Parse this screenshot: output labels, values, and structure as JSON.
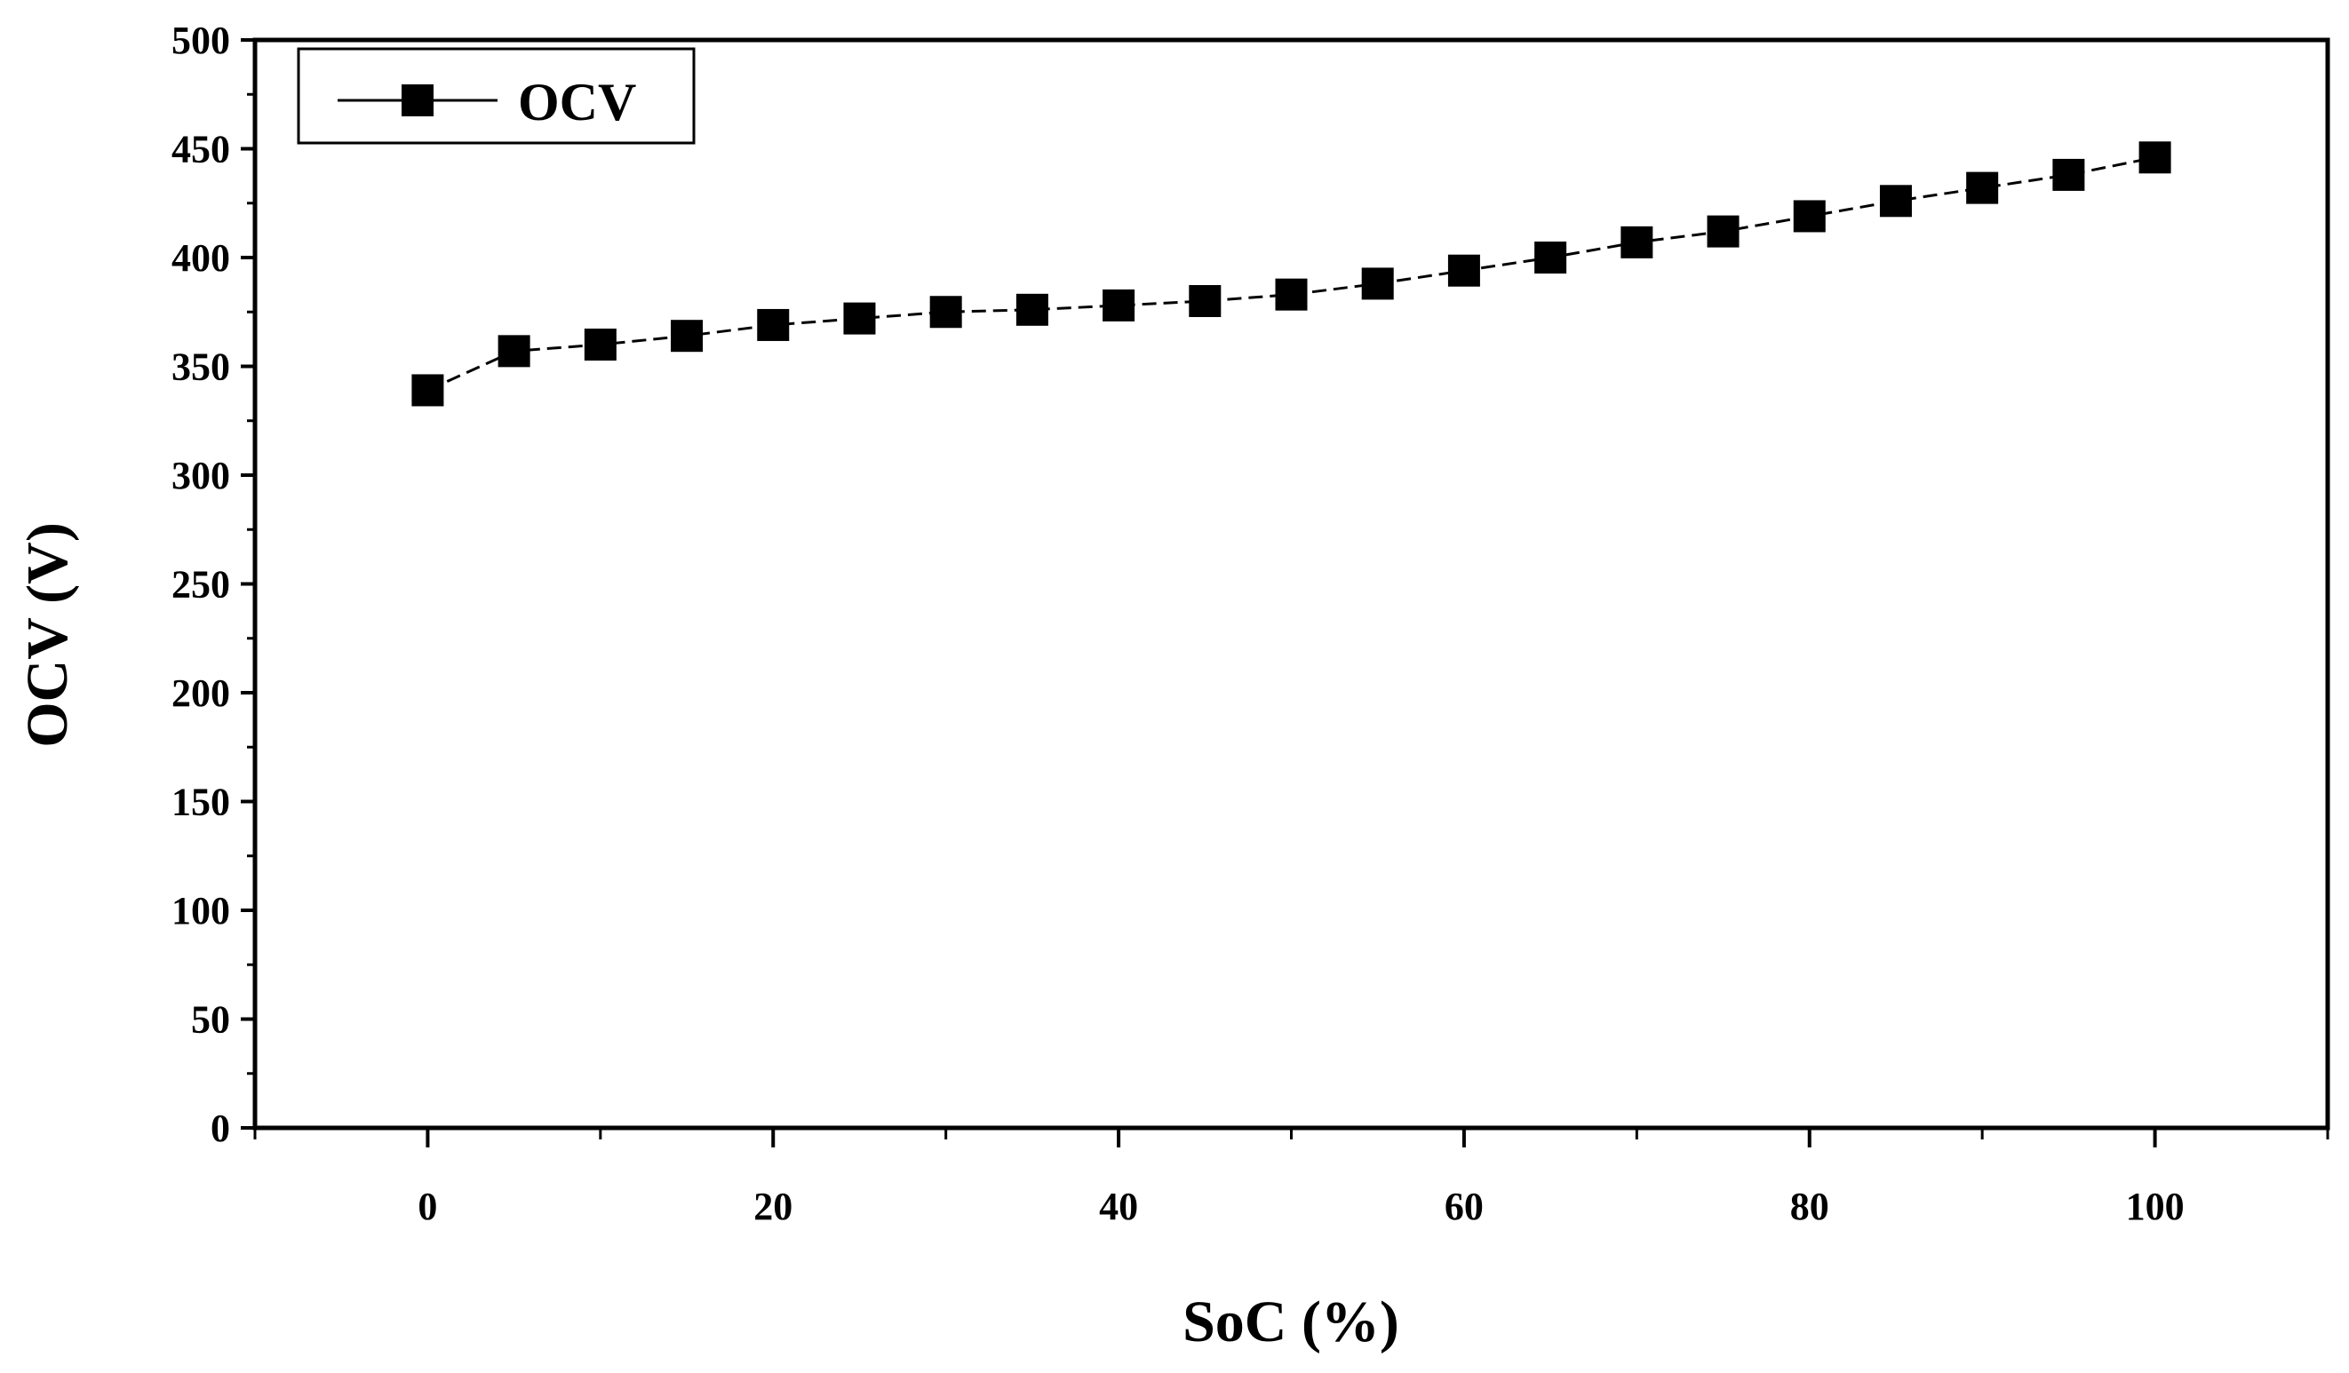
{
  "chart_data": {
    "type": "line",
    "title": "",
    "xlabel": "SoC (%)",
    "ylabel": "OCV (V)",
    "xlim": [
      -10,
      110
    ],
    "ylim": [
      0,
      500
    ],
    "xticks": [
      0,
      20,
      40,
      60,
      80,
      100
    ],
    "xtick_labels": [
      "0",
      "20",
      "40",
      "60",
      "80",
      "100"
    ],
    "yticks": [
      0,
      50,
      100,
      150,
      200,
      250,
      300,
      350,
      400,
      450,
      500
    ],
    "ytick_labels": [
      "0",
      "50",
      "100",
      "150",
      "200",
      "250",
      "300",
      "350",
      "400",
      "450",
      "500"
    ],
    "grid": false,
    "legend_position": "top-left",
    "series": [
      {
        "name": "OCV",
        "marker": "square",
        "line_style": "dashed",
        "color": "#000000",
        "x": [
          0,
          5,
          10,
          15,
          20,
          25,
          30,
          35,
          40,
          45,
          50,
          55,
          60,
          65,
          70,
          75,
          80,
          85,
          90,
          95,
          100
        ],
        "y": [
          339,
          357,
          360,
          364,
          369,
          372,
          375,
          376,
          378,
          380,
          383,
          388,
          394,
          400,
          407,
          412,
          419,
          426,
          432,
          438,
          446
        ]
      }
    ]
  }
}
